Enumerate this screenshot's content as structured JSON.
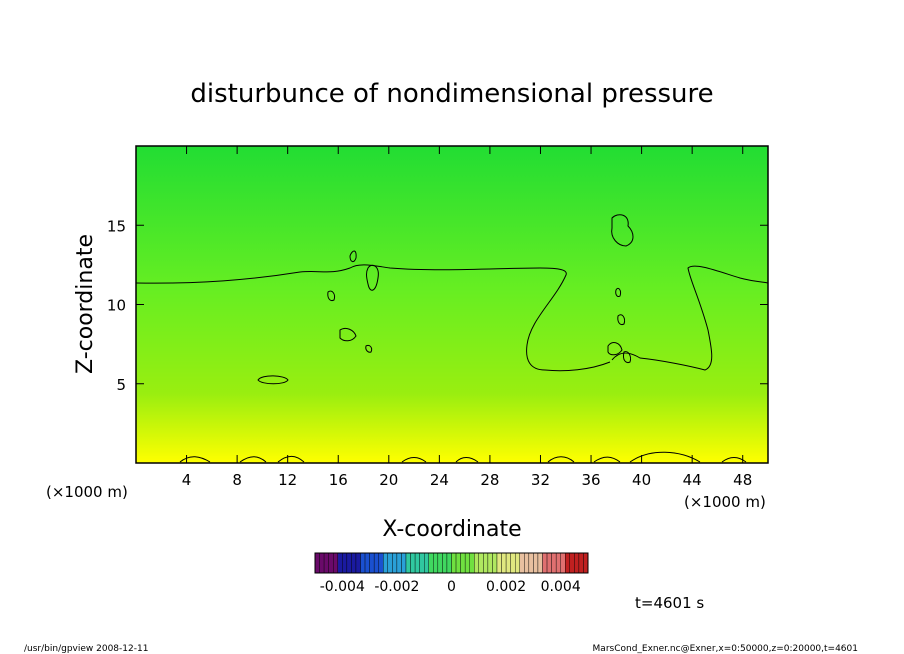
{
  "chart_data": {
    "type": "heatmap",
    "title": "disturbunce of nondimensional pressure",
    "xlabel": "X-coordinate",
    "ylabel": "Z-coordinate",
    "x_unit_left": "(×1000 m)",
    "x_unit_right": "(×1000 m)",
    "xlim": [
      0,
      50
    ],
    "ylim": [
      0,
      20
    ],
    "x_ticks": [
      "4",
      "8",
      "12",
      "16",
      "20",
      "24",
      "28",
      "32",
      "36",
      "40",
      "44",
      "48"
    ],
    "y_ticks": [
      "5",
      "10",
      "15"
    ],
    "x_tick_values": [
      4,
      8,
      12,
      16,
      20,
      24,
      28,
      32,
      36,
      40,
      44,
      48
    ],
    "y_tick_values": [
      5,
      10,
      15
    ],
    "colorbar": {
      "min": -0.005,
      "max": 0.005,
      "tick_labels": [
        "-0.004",
        "-0.002",
        "0",
        "0.002",
        "0.004"
      ],
      "tick_values": [
        -0.004,
        -0.002,
        0,
        0.002,
        0.004
      ],
      "colors": [
        "#6a0a6a",
        "#1a1aa0",
        "#1a50d0",
        "#2aa0d8",
        "#30c8a0",
        "#40d860",
        "#70e040",
        "#b0e860",
        "#e0e880",
        "#e8c0a0",
        "#e07070",
        "#c02020"
      ]
    },
    "field_colors": {
      "top": "#22dd33",
      "middle": "#66ee22",
      "lower": "#99ee10",
      "bottom": "#ffff00"
    },
    "time_label": "t=4601 s",
    "contour_levels_shown": 1
  },
  "footer": {
    "left": "/usr/bin/gpview   2008-12-11",
    "right": "MarsCond_Exner.nc@Exner,x=0:50000,z=0:20000,t=4601"
  }
}
